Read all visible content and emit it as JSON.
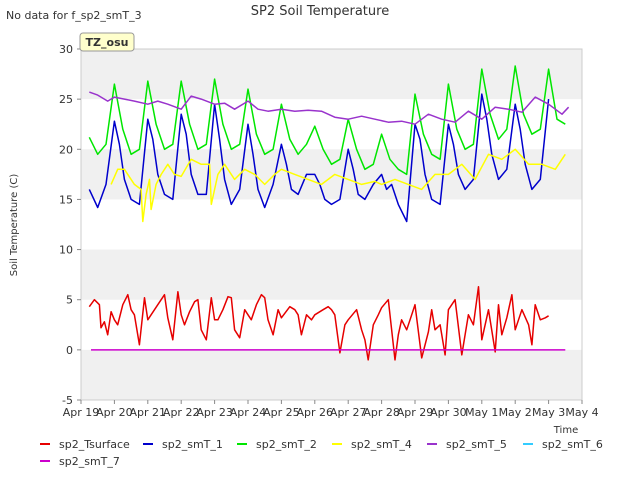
{
  "no_data_note": "No data for f_sp2_smT_3",
  "tz_badge": "TZ_osu",
  "colors": {
    "sp2_Tsurface": "#e60000",
    "sp2_smT_1": "#0000cc",
    "sp2_smT_2": "#00e600",
    "sp2_smT_4": "#ffff00",
    "sp2_smT_5": "#9933cc",
    "sp2_smT_6": "#33ccff",
    "sp2_smT_7": "#cc00cc",
    "band": "#f0f0f0",
    "badge_bg": "#ffffcc",
    "badge_border": "#999999",
    "badge_text": "#990000"
  },
  "chart_data": {
    "type": "line",
    "title": "SP2 Soil Temperature",
    "xlabel": "Time",
    "ylabel": "Soil Temperature (C)",
    "xlim": [
      0,
      15
    ],
    "ylim": [
      -5,
      30
    ],
    "yticks": [
      -5,
      0,
      5,
      10,
      15,
      20,
      25,
      30
    ],
    "xtick_labels": [
      "Apr 19",
      "Apr 20",
      "Apr 21",
      "Apr 22",
      "Apr 23",
      "Apr 24",
      "Apr 25",
      "Apr 26",
      "Apr 27",
      "Apr 28",
      "Apr 29",
      "Apr 30",
      "May 1",
      "May 2",
      "May 3",
      "May 4"
    ],
    "x_unit": "days since Apr 19 00:00",
    "legend_position": "bottom",
    "series": [
      {
        "name": "sp2_Tsurface",
        "color": "#e60000",
        "x": [
          0.25,
          0.4,
          0.55,
          0.6,
          0.7,
          0.8,
          0.9,
          1.0,
          1.1,
          1.25,
          1.4,
          1.5,
          1.6,
          1.75,
          1.9,
          2.0,
          2.1,
          2.3,
          2.5,
          2.6,
          2.75,
          2.9,
          3.0,
          3.1,
          3.25,
          3.4,
          3.5,
          3.6,
          3.75,
          3.9,
          4.0,
          4.1,
          4.25,
          4.4,
          4.5,
          4.6,
          4.75,
          4.9,
          5.0,
          5.1,
          5.25,
          5.4,
          5.5,
          5.6,
          5.75,
          5.9,
          6.0,
          6.25,
          6.4,
          6.5,
          6.6,
          6.75,
          6.9,
          7.0,
          7.25,
          7.4,
          7.5,
          7.6,
          7.75,
          7.9,
          8.0,
          8.25,
          8.4,
          8.5,
          8.6,
          8.75,
          8.9,
          9.0,
          9.2,
          9.4,
          9.5,
          9.6,
          9.75,
          9.9,
          10.0,
          10.2,
          10.4,
          10.5,
          10.6,
          10.75,
          10.9,
          11.0,
          11.2,
          11.4,
          11.5,
          11.6,
          11.75,
          11.9,
          12.0,
          12.2,
          12.4,
          12.5,
          12.6,
          12.75,
          12.9,
          13.0,
          13.2,
          13.4,
          13.5,
          13.6,
          13.75,
          13.9,
          14.0
        ],
        "y": [
          4.3,
          5.0,
          4.5,
          2.2,
          2.8,
          1.5,
          3.8,
          3.0,
          2.5,
          4.5,
          5.5,
          4.0,
          3.5,
          0.5,
          5.2,
          3.0,
          3.5,
          4.5,
          5.5,
          3.2,
          1.0,
          5.8,
          3.5,
          2.5,
          3.8,
          4.8,
          5.0,
          2.0,
          1.0,
          5.2,
          3.0,
          3.0,
          4.0,
          5.3,
          5.2,
          2.0,
          1.2,
          4.0,
          3.5,
          3.0,
          4.5,
          5.5,
          5.2,
          3.0,
          1.5,
          4.0,
          3.2,
          4.3,
          4.0,
          3.5,
          1.5,
          3.5,
          3.0,
          3.5,
          4.0,
          4.3,
          4.0,
          3.5,
          -0.3,
          2.5,
          3.0,
          4.0,
          2.0,
          1.0,
          -1.0,
          2.5,
          3.5,
          4.2,
          5.0,
          -1.0,
          1.5,
          3.0,
          2.0,
          3.5,
          4.5,
          -0.8,
          1.8,
          4.0,
          2.0,
          2.5,
          -0.5,
          4.0,
          5.0,
          -0.5,
          1.5,
          3.5,
          2.5,
          6.3,
          1.0,
          4.0,
          -0.2,
          4.5,
          1.5,
          3.2,
          5.5,
          2.0,
          4.0,
          2.5,
          0.5,
          4.5,
          3.0,
          3.2,
          3.4
        ]
      },
      {
        "name": "sp2_smT_1",
        "color": "#0000cc",
        "x": [
          0.25,
          0.5,
          0.75,
          1.0,
          1.15,
          1.3,
          1.5,
          1.75,
          2.0,
          2.15,
          2.3,
          2.5,
          2.75,
          3.0,
          3.15,
          3.3,
          3.5,
          3.75,
          4.0,
          4.15,
          4.3,
          4.5,
          4.75,
          5.0,
          5.15,
          5.3,
          5.5,
          5.75,
          6.0,
          6.15,
          6.3,
          6.5,
          6.75,
          7.0,
          7.15,
          7.3,
          7.5,
          7.75,
          8.0,
          8.15,
          8.3,
          8.5,
          8.75,
          9.0,
          9.15,
          9.3,
          9.5,
          9.75,
          10.0,
          10.15,
          10.3,
          10.5,
          10.75,
          11.0,
          11.15,
          11.3,
          11.5,
          11.75,
          12.0,
          12.15,
          12.3,
          12.5,
          12.75,
          13.0,
          13.15,
          13.3,
          13.5,
          13.75,
          14.0
        ],
        "y": [
          16.0,
          14.2,
          16.5,
          22.8,
          20.5,
          17.0,
          15.0,
          14.5,
          23.0,
          21.0,
          17.5,
          15.5,
          15.0,
          23.5,
          21.5,
          17.5,
          15.5,
          15.5,
          24.5,
          21.0,
          17.0,
          14.5,
          16.0,
          22.5,
          19.5,
          16.0,
          14.2,
          16.5,
          20.5,
          18.5,
          16.0,
          15.5,
          17.5,
          17.5,
          16.5,
          15.0,
          14.5,
          15.0,
          20.0,
          18.0,
          15.5,
          15.0,
          16.5,
          17.5,
          16.0,
          16.5,
          14.5,
          12.8,
          22.5,
          21.0,
          17.5,
          15.0,
          14.5,
          22.5,
          20.5,
          17.5,
          16.0,
          17.0,
          25.5,
          23.0,
          19.5,
          17.0,
          18.0,
          24.5,
          22.0,
          18.5,
          16.0,
          17.0,
          25.0
        ]
      },
      {
        "name": "sp2_smT_2",
        "color": "#00e600",
        "x": [
          0.25,
          0.5,
          0.75,
          1.0,
          1.25,
          1.5,
          1.75,
          2.0,
          2.25,
          2.5,
          2.75,
          3.0,
          3.25,
          3.5,
          3.75,
          4.0,
          4.25,
          4.5,
          4.75,
          5.0,
          5.25,
          5.5,
          5.75,
          6.0,
          6.25,
          6.5,
          6.75,
          7.0,
          7.25,
          7.5,
          7.75,
          8.0,
          8.25,
          8.5,
          8.75,
          9.0,
          9.25,
          9.5,
          9.75,
          10.0,
          10.25,
          10.5,
          10.75,
          11.0,
          11.25,
          11.5,
          11.75,
          12.0,
          12.25,
          12.5,
          12.75,
          13.0,
          13.25,
          13.5,
          13.75,
          14.0,
          14.25,
          14.5
        ],
        "y": [
          21.2,
          19.5,
          20.5,
          26.5,
          22.0,
          19.5,
          20.0,
          26.8,
          22.5,
          20.0,
          20.5,
          26.8,
          22.5,
          20.0,
          20.5,
          27.0,
          22.5,
          20.0,
          20.5,
          26.0,
          21.5,
          19.5,
          20.0,
          24.5,
          21.0,
          19.5,
          20.5,
          22.3,
          20.0,
          18.5,
          19.0,
          23.0,
          20.0,
          18.0,
          18.5,
          21.5,
          19.0,
          18.0,
          17.5,
          25.5,
          21.5,
          19.5,
          19.0,
          26.5,
          22.0,
          20.0,
          20.5,
          28.0,
          23.5,
          21.0,
          22.0,
          28.3,
          23.5,
          21.5,
          22.0,
          28.0,
          23.0,
          22.5
        ]
      },
      {
        "name": "sp2_smT_4",
        "color": "#ffff00",
        "x": [
          0.9,
          1.1,
          1.3,
          1.6,
          1.8,
          1.85,
          1.95,
          2.05,
          2.1,
          2.25,
          2.4,
          2.6,
          2.8,
          3.0,
          3.3,
          3.6,
          3.85,
          3.9,
          4.1,
          4.3,
          4.6,
          4.9,
          5.2,
          5.5,
          5.8,
          6.0,
          6.4,
          6.8,
          7.2,
          7.6,
          8.0,
          8.4,
          8.8,
          9.0,
          9.4,
          9.8,
          10.2,
          10.6,
          11.0,
          11.4,
          11.8,
          12.2,
          12.6,
          13.0,
          13.4,
          13.8,
          14.2,
          14.5
        ],
        "y": [
          16.5,
          18.0,
          18.0,
          16.5,
          16.0,
          12.8,
          15.5,
          17.0,
          14.0,
          16.5,
          17.5,
          18.5,
          17.5,
          17.3,
          19.0,
          18.5,
          18.5,
          14.5,
          17.5,
          18.5,
          17.0,
          18.0,
          17.5,
          16.5,
          17.5,
          18.0,
          17.5,
          17.0,
          16.5,
          17.5,
          17.0,
          16.5,
          16.8,
          16.5,
          17.0,
          16.5,
          16.0,
          17.5,
          17.5,
          18.5,
          17.0,
          19.5,
          19.0,
          20.0,
          18.5,
          18.5,
          18.0,
          19.5
        ]
      },
      {
        "name": "sp2_smT_5",
        "color": "#9933cc",
        "x": [
          0.25,
          0.5,
          0.8,
          1.0,
          1.3,
          1.6,
          2.0,
          2.3,
          2.6,
          3.0,
          3.3,
          3.6,
          4.0,
          4.3,
          4.6,
          5.0,
          5.3,
          5.6,
          6.0,
          6.4,
          6.8,
          7.2,
          7.6,
          8.0,
          8.4,
          8.8,
          9.2,
          9.6,
          10.0,
          10.4,
          10.8,
          11.2,
          11.6,
          12.0,
          12.4,
          12.8,
          13.2,
          13.6,
          14.0,
          14.4,
          14.6
        ],
        "y": [
          25.7,
          25.4,
          24.8,
          25.2,
          25.0,
          24.8,
          24.5,
          24.8,
          24.5,
          24.0,
          25.3,
          25.0,
          24.5,
          24.6,
          24.0,
          24.8,
          24.0,
          23.8,
          24.0,
          23.8,
          23.9,
          23.8,
          23.2,
          23.0,
          23.3,
          23.0,
          22.7,
          22.8,
          22.5,
          23.5,
          23.0,
          22.7,
          23.8,
          23.0,
          24.2,
          24.0,
          23.7,
          25.2,
          24.5,
          23.5,
          24.2
        ]
      },
      {
        "name": "sp2_smT_7",
        "color": "#cc00cc",
        "x": [
          0.3,
          14.5
        ],
        "y": [
          0,
          0
        ]
      }
    ]
  }
}
